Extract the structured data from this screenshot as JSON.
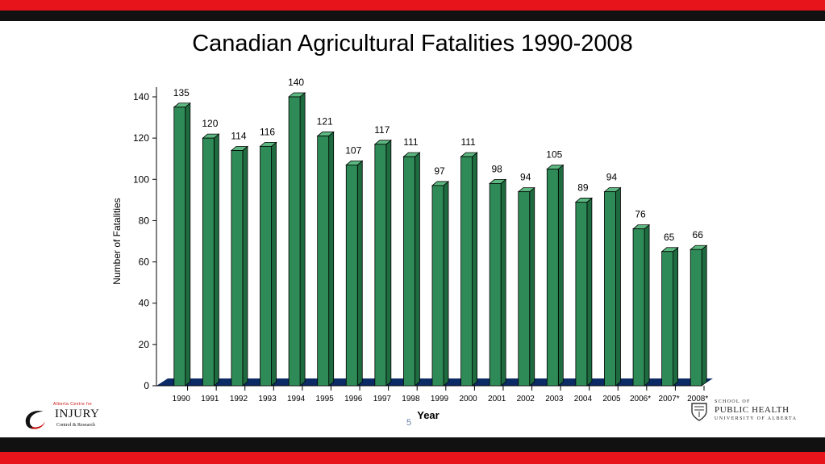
{
  "slide": {
    "title": "Canadian Agricultural Fatalities 1990-2008",
    "page_number": "5"
  },
  "logos": {
    "left": {
      "line1": "Alberta Centre for",
      "line2": "INJURY",
      "line3": "Control & Research"
    },
    "right": {
      "line1": "SCHOOL OF",
      "line2": "PUBLIC HEALTH",
      "line3": "UNIVERSITY OF ALBERTA"
    }
  },
  "colors": {
    "bar": "#2e8b57",
    "bar_side": "#1f6b40",
    "bar_top": "#5cb880",
    "floor": "#0c2b66",
    "accent_red": "#e8141b",
    "band_black": "#111111"
  },
  "chart_data": {
    "type": "bar",
    "title": "Canadian Agricultural Fatalities 1990-2008",
    "xlabel": "Year",
    "ylabel": "Number of Fatalities",
    "ylim": [
      0,
      140
    ],
    "yticks": [
      0,
      20,
      40,
      60,
      80,
      100,
      120,
      140
    ],
    "grid": false,
    "categories": [
      "1990",
      "1991",
      "1992",
      "1993",
      "1994",
      "1995",
      "1996",
      "1997",
      "1998",
      "1999",
      "2000",
      "2001",
      "2002",
      "2003",
      "2004",
      "2005",
      "2006*",
      "2007*",
      "2008*"
    ],
    "values": [
      135,
      120,
      114,
      116,
      140,
      121,
      107,
      117,
      111,
      97,
      111,
      98,
      94,
      105,
      89,
      94,
      76,
      65,
      66
    ],
    "data_labels": [
      "135",
      "120",
      "114",
      "116",
      "140",
      "121",
      "107",
      "117",
      "111",
      "97",
      "111",
      "98",
      "94",
      "105",
      "89",
      "94",
      "76",
      "65",
      "66"
    ]
  }
}
